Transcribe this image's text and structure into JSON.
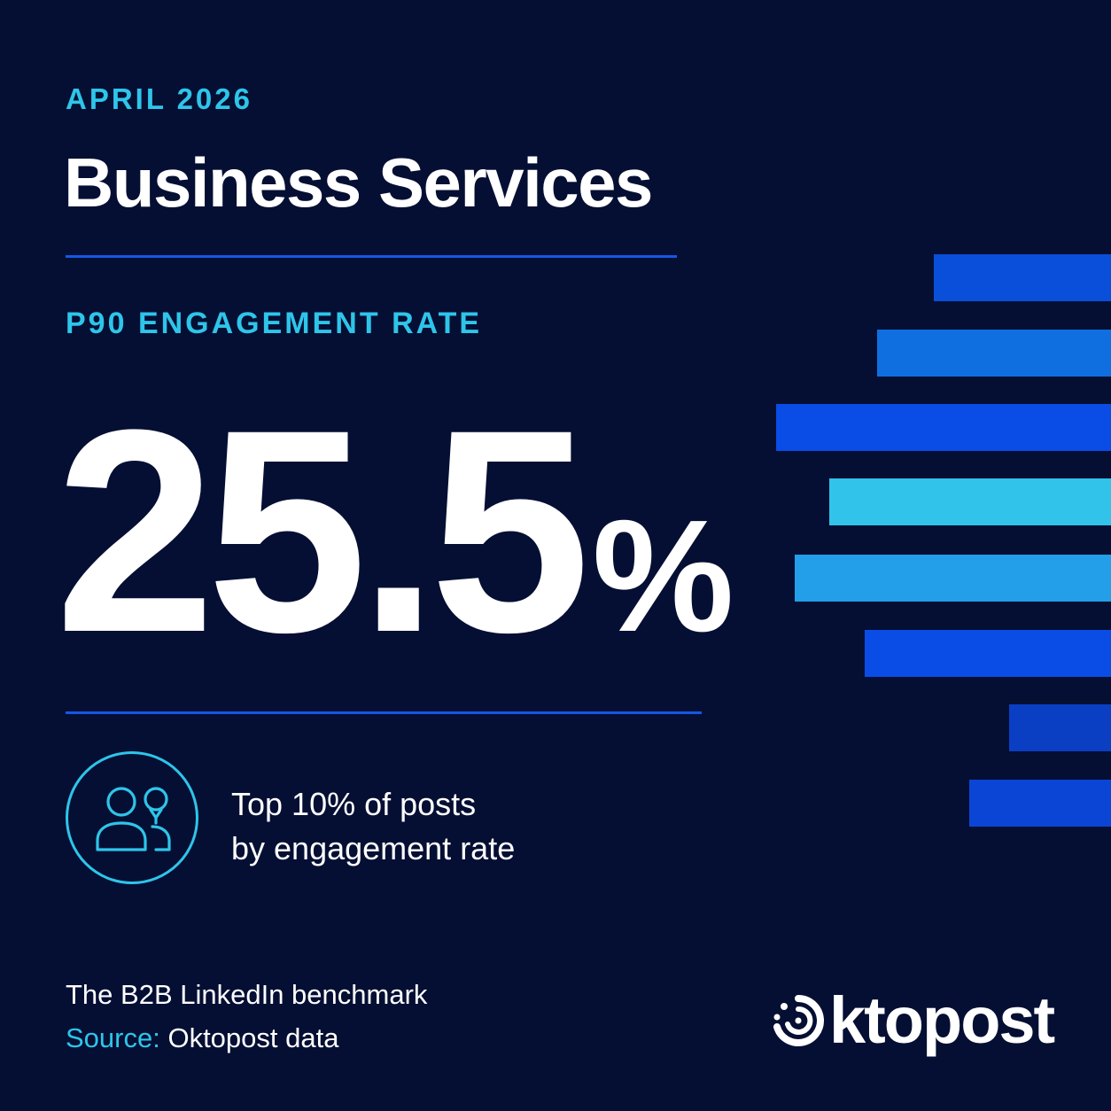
{
  "header": {
    "eyebrow": "APRIL 2026",
    "title": "Business Services"
  },
  "metric": {
    "label": "P90 ENGAGEMENT RATE",
    "value": "25.5",
    "unit": "%"
  },
  "note": {
    "icon": "people-icon",
    "line1": "Top 10% of posts",
    "line2": "by engagement rate"
  },
  "footer": {
    "line": "The B2B LinkedIn benchmark",
    "source_prefix": "Source:",
    "source_value": " Oktopost data"
  },
  "brand": {
    "logo_text": "ktopost"
  },
  "colors": {
    "background": "#050f33",
    "accent": "#2ec5ea",
    "rule": "#1557e6",
    "text": "#ffffff"
  },
  "decor_bars": [
    {
      "color": "#0a4fd9"
    },
    {
      "color": "#0f6fe0"
    },
    {
      "color": "#0a4ce6"
    },
    {
      "color": "#31c3ea"
    },
    {
      "color": "#239ee8"
    },
    {
      "color": "#0a4ce6"
    },
    {
      "color": "#0a3fc4"
    },
    {
      "color": "#0a45d6"
    }
  ]
}
